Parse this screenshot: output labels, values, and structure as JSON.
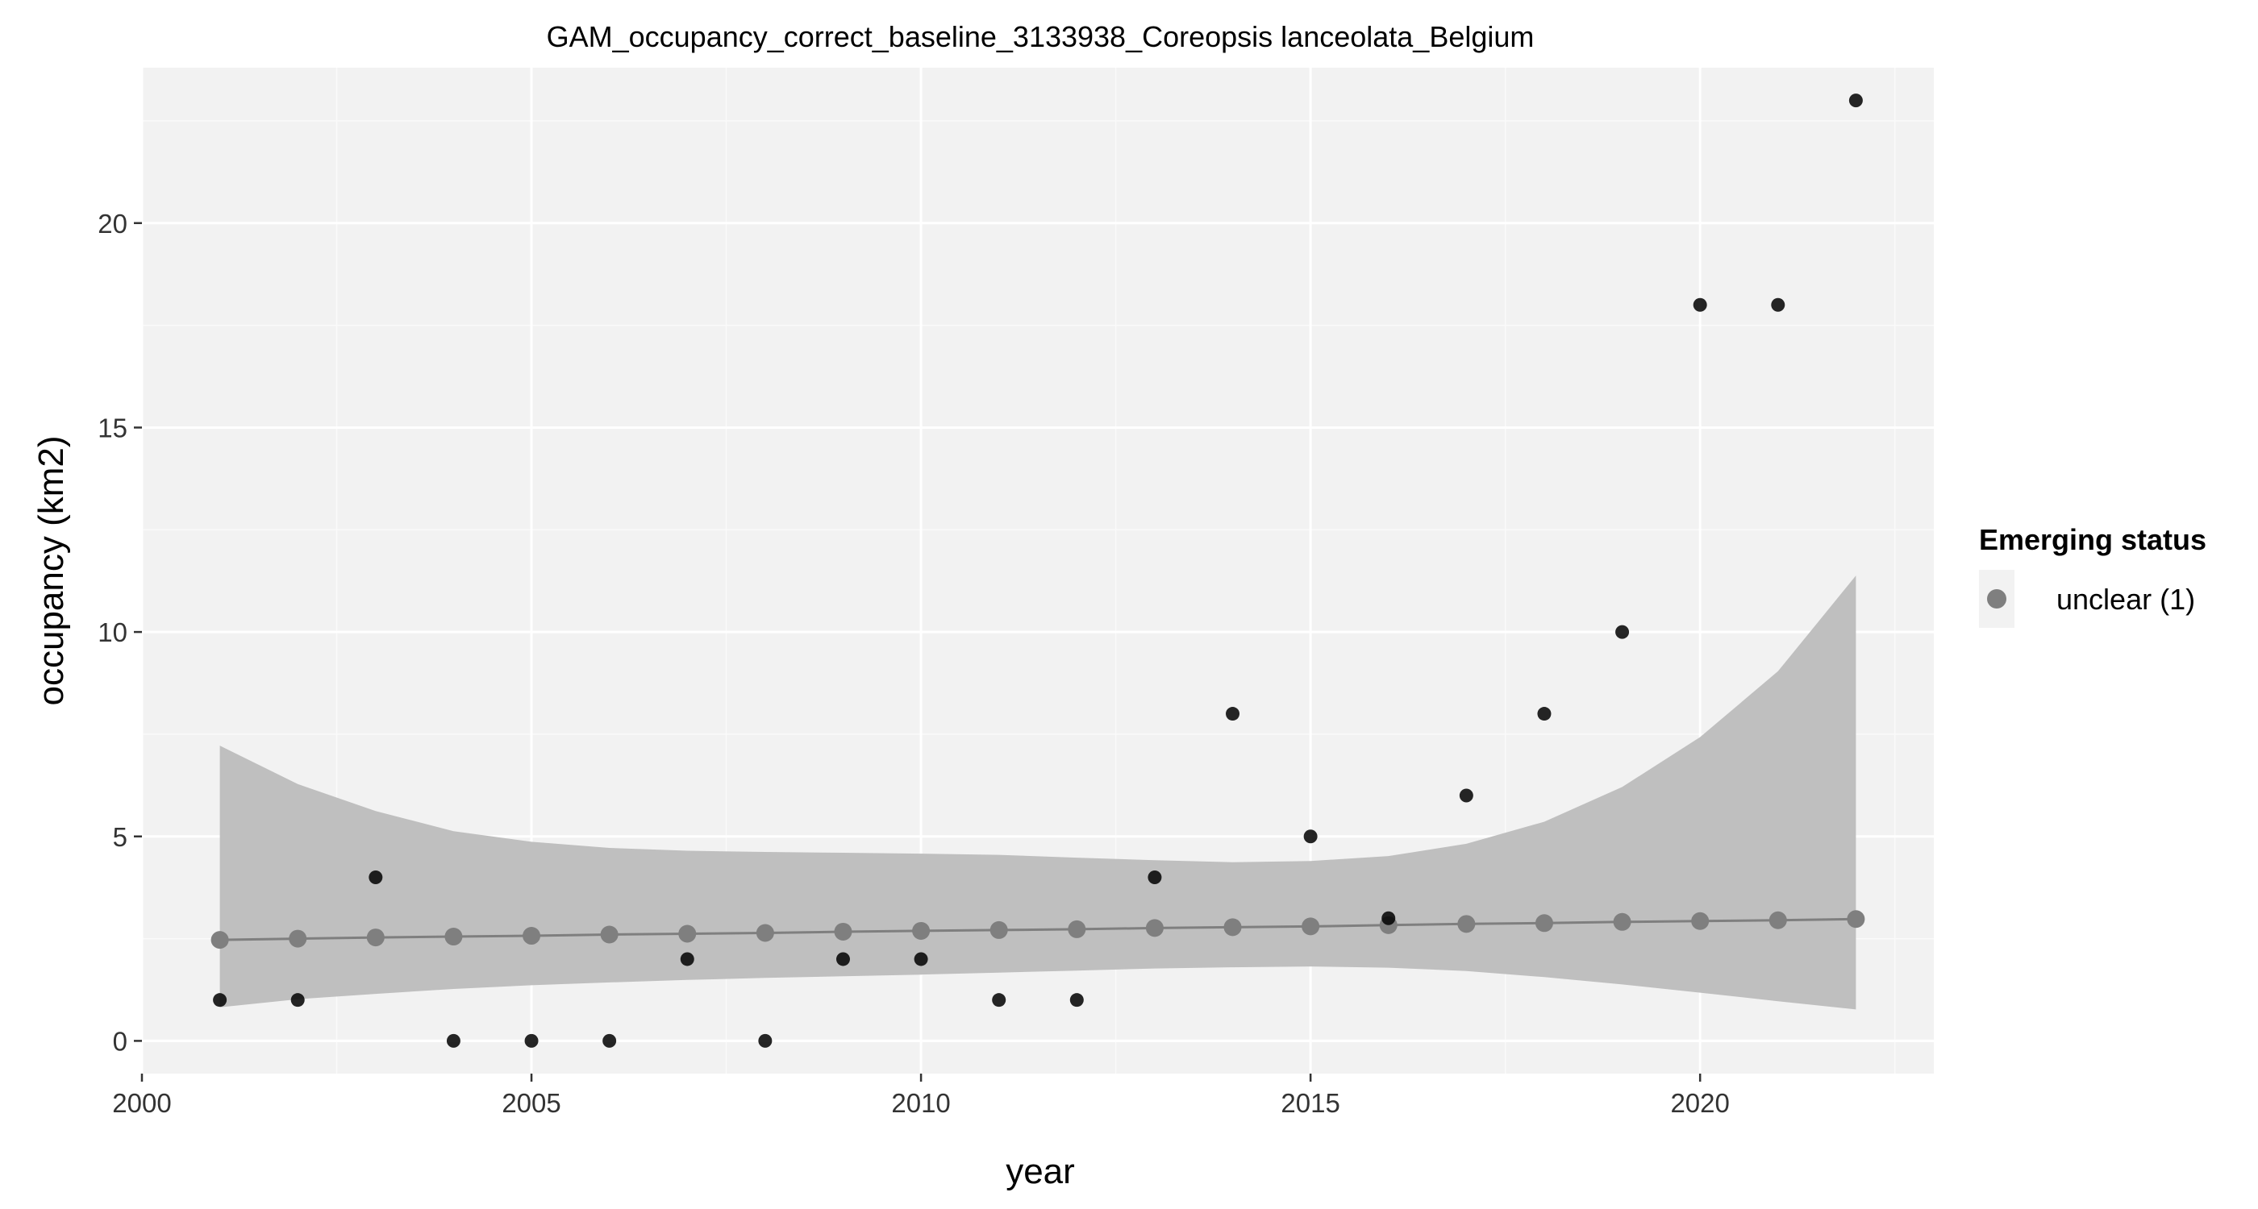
{
  "chart_data": {
    "type": "scatter",
    "title": "GAM_occupancy_correct_baseline_3133938_Coreopsis lanceolata_Belgium",
    "xlabel": "year",
    "ylabel": "occupancy (km2)",
    "xlim": [
      2000,
      2023
    ],
    "ylim": [
      -0.8,
      23.8
    ],
    "x_ticks": [
      2000,
      2005,
      2010,
      2015,
      2020
    ],
    "x_tick_labels": [
      "2000",
      "2005",
      "2010",
      "2015",
      "2020"
    ],
    "y_ticks": [
      0,
      5,
      10,
      15,
      20
    ],
    "y_tick_labels": [
      "0",
      "5",
      "10",
      "15",
      "20"
    ],
    "grid": true,
    "legend_position": "right",
    "legend": {
      "title": "Emerging status",
      "entries": [
        {
          "label": "unclear (1)",
          "color": "#7f7f7f"
        }
      ]
    },
    "observed": {
      "color": "#000000",
      "x": [
        2001,
        2002,
        2003,
        2004,
        2005,
        2006,
        2007,
        2008,
        2009,
        2010,
        2011,
        2012,
        2013,
        2014,
        2015,
        2016,
        2017,
        2018,
        2019,
        2020,
        2021,
        2022
      ],
      "y": [
        1,
        1,
        4,
        0,
        0,
        0,
        2,
        0,
        2,
        2,
        1,
        1,
        4,
        8,
        5,
        3,
        6,
        8,
        10,
        18,
        18,
        23
      ]
    },
    "fitted": {
      "color": "#7f7f7f",
      "x": [
        2001,
        2002,
        2003,
        2004,
        2005,
        2006,
        2007,
        2008,
        2009,
        2010,
        2011,
        2012,
        2013,
        2014,
        2015,
        2016,
        2017,
        2018,
        2019,
        2020,
        2021,
        2022
      ],
      "y": [
        2.47,
        2.5,
        2.53,
        2.55,
        2.57,
        2.6,
        2.62,
        2.64,
        2.67,
        2.69,
        2.71,
        2.73,
        2.76,
        2.78,
        2.8,
        2.83,
        2.86,
        2.88,
        2.91,
        2.93,
        2.95,
        2.98
      ],
      "lower": [
        0.82,
        1.02,
        1.15,
        1.27,
        1.36,
        1.43,
        1.49,
        1.54,
        1.58,
        1.62,
        1.67,
        1.72,
        1.77,
        1.8,
        1.82,
        1.79,
        1.71,
        1.56,
        1.38,
        1.18,
        0.97,
        0.77
      ],
      "upper": [
        7.22,
        6.28,
        5.62,
        5.13,
        4.87,
        4.72,
        4.65,
        4.62,
        4.6,
        4.58,
        4.55,
        4.48,
        4.42,
        4.37,
        4.4,
        4.52,
        4.82,
        5.36,
        6.21,
        7.43,
        9.04,
        11.38
      ],
      "ribbon_color": "#bfbfbf"
    },
    "colors": {
      "panel_background": "#f2f2f2",
      "grid_major": "#ffffff",
      "grid_minor": "#fafafa",
      "legend_key_background": "#f2f2f2"
    }
  }
}
